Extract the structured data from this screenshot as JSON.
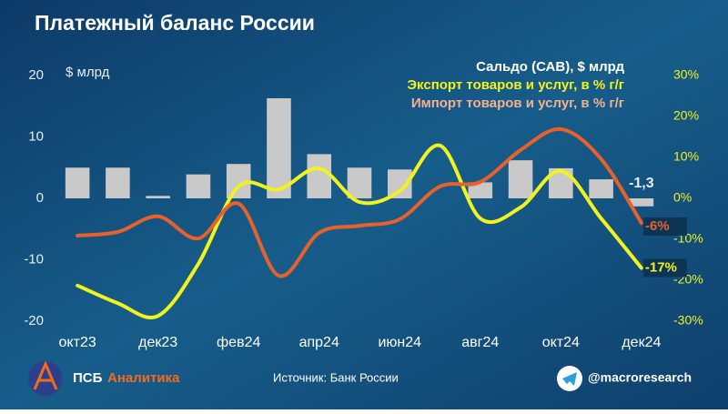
{
  "chart_data": {
    "type": "bar",
    "title": "Платежный баланс России",
    "y_unit": "$ млрд",
    "categories": [
      "окт23",
      null,
      "дек23",
      null,
      "фев24",
      null,
      "апр24",
      null,
      "июн24",
      null,
      "авг24",
      null,
      "окт24",
      null,
      "дек24"
    ],
    "series": [
      {
        "name": "Сальдо (САВ), $ млрд",
        "type": "bar",
        "color": "#c9c9c9",
        "axis": "y",
        "values": [
          5.0,
          5.0,
          0.4,
          3.9,
          5.6,
          16.3,
          7.2,
          5.0,
          4.7,
          0.0,
          2.6,
          6.2,
          4.9,
          3.1,
          -1.3
        ],
        "value_labels": [
          null,
          null,
          null,
          null,
          null,
          null,
          null,
          null,
          null,
          null,
          null,
          null,
          null,
          null,
          "-1,3"
        ]
      },
      {
        "name": "Экспорт товаров и услуг, в % г/г",
        "type": "line",
        "color": "#f2f21e",
        "axis": "y2",
        "values": [
          -21.3,
          -25.6,
          -28.7,
          -16.0,
          2.9,
          2.2,
          7.3,
          -0.9,
          1.8,
          12.9,
          -4.9,
          -2.2,
          6.7,
          -4.9,
          -17
        ],
        "value_labels": [
          null,
          null,
          null,
          null,
          null,
          null,
          null,
          null,
          null,
          null,
          null,
          null,
          null,
          null,
          "-17%"
        ]
      },
      {
        "name": "Импорт товаров и услуг, в % г/г",
        "type": "line",
        "color": "#e8612a",
        "axis": "y2",
        "values": [
          -9.1,
          -8.2,
          -4.4,
          -9.8,
          -1.3,
          -18.9,
          -8.4,
          -6.7,
          -5.1,
          2.9,
          4.0,
          11.8,
          16.9,
          9.6,
          -6
        ],
        "value_labels": [
          null,
          null,
          null,
          null,
          null,
          null,
          null,
          null,
          null,
          null,
          null,
          null,
          null,
          null,
          "-6%"
        ]
      }
    ],
    "ylim": [
      -20,
      20
    ],
    "yticks": [
      20,
      10,
      0,
      -10,
      -20
    ],
    "y2lim": [
      -30,
      30
    ],
    "y2ticks": [
      {
        "value": 30,
        "label": "30%"
      },
      {
        "value": 20,
        "label": "20%"
      },
      {
        "value": 10,
        "label": "10%"
      },
      {
        "value": 0,
        "label": "0%"
      },
      {
        "value": -10,
        "label": "-10%"
      },
      {
        "value": -20,
        "label": "-20%"
      },
      {
        "value": -30,
        "label": "-30%"
      }
    ],
    "legend_colors": [
      "#ffffff",
      "#f2f21e",
      "#f4b090"
    ],
    "legend": "top-right"
  },
  "footer": {
    "brand_1": "ПСБ",
    "brand_2": "Аналитика",
    "source": "Источник: Банк России",
    "handle": "@macroresearch"
  }
}
